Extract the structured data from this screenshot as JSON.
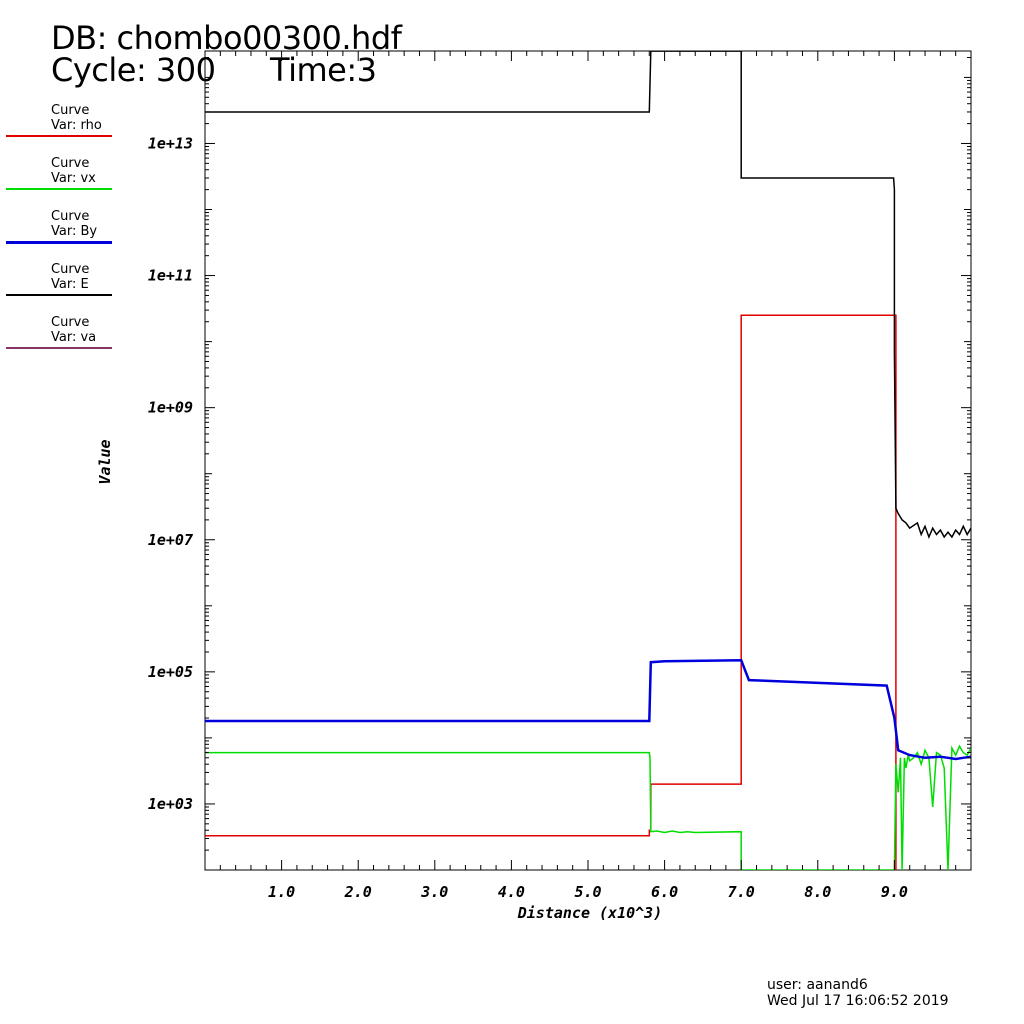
{
  "header": {
    "db": "DB: chombo00300.hdf",
    "cycle": "Cycle: 300",
    "time": "Time:3"
  },
  "legend": [
    {
      "title": "Curve",
      "var": "Var: rho",
      "color": "#e00000"
    },
    {
      "title": "Curve",
      "var": "Var: vx",
      "color": "#00dd00"
    },
    {
      "title": "Curve",
      "var": "Var: By",
      "color": "#0000dd"
    },
    {
      "title": "Curve",
      "var": "Var: E",
      "color": "#000000"
    },
    {
      "title": "Curve",
      "var": "Var: va",
      "color": "#883366"
    }
  ],
  "footer": {
    "user": "user: aanand6",
    "date": "Wed Jul 17 16:06:52 2019"
  },
  "chart_data": {
    "type": "line",
    "xlabel": "Distance (x10^3)",
    "ylabel": "Value",
    "xlim": [
      0,
      10
    ],
    "ylim_log10": [
      2,
      14.4
    ],
    "y_scale": "log",
    "grid": false,
    "x_ticks": [
      "1.0",
      "2.0",
      "3.0",
      "4.0",
      "5.0",
      "6.0",
      "7.0",
      "8.0",
      "9.0"
    ],
    "y_ticks": [
      "1e+03",
      "1e+05",
      "1e+07",
      "1e+09",
      "1e+11",
      "1e+13"
    ],
    "series": [
      {
        "name": "rho",
        "color": "#e00000",
        "width": 1.5,
        "x": [
          0,
          5.8,
          5.8,
          5.82,
          5.82,
          7.0,
          7.0,
          8.99,
          9.02,
          9.02
        ],
        "y": [
          330,
          330,
          400,
          400,
          2000,
          2000,
          25000000000.0,
          25000000000.0,
          25000000000.0,
          100
        ]
      },
      {
        "name": "vx",
        "color": "#00dd00",
        "width": 1.5,
        "x": [
          0,
          5.8,
          5.81,
          5.82,
          5.9,
          6.0,
          6.1,
          6.2,
          6.3,
          6.4,
          7.0,
          7.0,
          7.0,
          9.0,
          9.02,
          9.05,
          9.08,
          9.1,
          9.13,
          9.15,
          9.18,
          9.2,
          9.25,
          9.3,
          9.35,
          9.4,
          9.45,
          9.5,
          9.55,
          9.6,
          9.65,
          9.7,
          9.75,
          9.8,
          9.85,
          9.9,
          9.95,
          10.0
        ],
        "y": [
          6000,
          6000,
          5000,
          380,
          390,
          370,
          390,
          370,
          380,
          370,
          380,
          100,
          100,
          100,
          4000,
          1500,
          5000,
          100,
          5000,
          3500,
          5500,
          4500,
          5000,
          6000,
          4000,
          6500,
          5000,
          900,
          6000,
          5500,
          3500,
          100,
          7000,
          5500,
          7500,
          6000,
          5500,
          7000
        ]
      },
      {
        "name": "By",
        "color": "#0000dd",
        "width": 2.5,
        "x": [
          0,
          5.8,
          5.82,
          6.0,
          7.0,
          7.1,
          8.9,
          9.0,
          9.05,
          9.2,
          9.4,
          9.6,
          9.8,
          9.9,
          10.0
        ],
        "y": [
          18000,
          18000,
          140000,
          145000,
          150000,
          75000,
          62000,
          20000,
          6500,
          5500,
          5000,
          5200,
          4800,
          5000,
          5200
        ]
      },
      {
        "name": "E",
        "color": "#000000",
        "width": 1.5,
        "x": [
          0,
          5.8,
          5.82,
          7.0,
          7.0,
          8.99,
          9.0,
          9.0,
          9.02,
          9.05,
          9.1,
          9.15,
          9.2,
          9.3,
          9.35,
          9.4,
          9.45,
          9.5,
          9.55,
          9.6,
          9.65,
          9.7,
          9.75,
          9.8,
          9.85,
          9.9,
          9.95,
          10.0
        ],
        "y": [
          30000000000000.0,
          30000000000000.0,
          250000000000000.0,
          250000000000000.0,
          3000000000000.0,
          3000000000000.0,
          2000000000000.0,
          7000000000.0,
          30000000.0,
          25000000.0,
          20000000.0,
          18000000.0,
          15000000.0,
          18000000.0,
          12000000.0,
          16000000.0,
          11000000.0,
          15000000.0,
          12000000.0,
          14000000.0,
          11000000.0,
          13000000.0,
          11000000.0,
          14000000.0,
          12000000.0,
          16000000.0,
          12000000.0,
          15000000.0
        ]
      }
    ]
  }
}
